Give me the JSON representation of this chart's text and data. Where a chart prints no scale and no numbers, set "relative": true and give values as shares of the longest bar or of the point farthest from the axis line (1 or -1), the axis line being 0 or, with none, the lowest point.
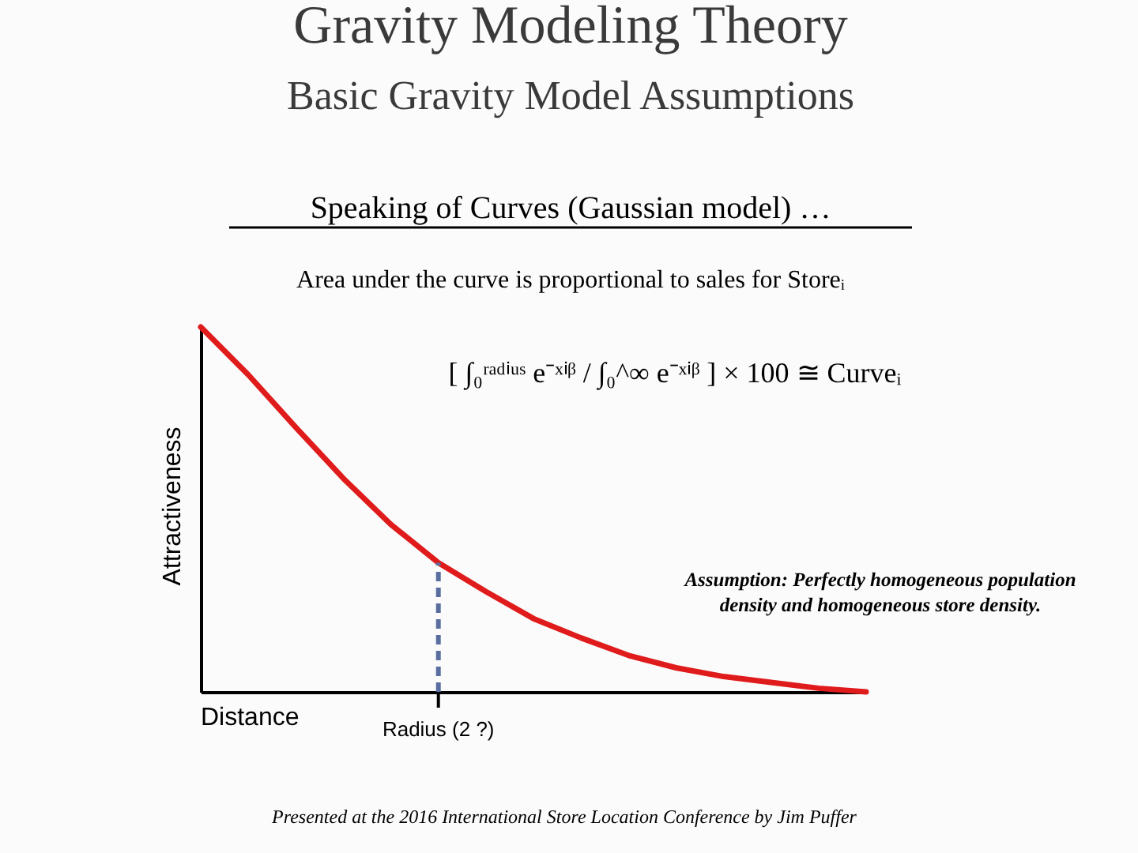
{
  "chart_data": {
    "type": "line",
    "title": "Gravity Modeling Theory",
    "subtitle": "Basic Gravity Model Assumptions",
    "xlabel": "Distance",
    "ylabel": "Attractiveness",
    "relative": true,
    "categories": [
      null,
      null,
      null,
      null,
      null,
      null,
      null,
      null,
      null,
      null,
      null,
      null,
      null,
      null,
      null
    ],
    "tick_labels": false,
    "series": [
      {
        "color": "#e01b1b",
        "values": [
          1,
          0.869,
          0.725,
          0.585,
          0.459,
          0.354,
          0.275,
          0.201,
          0.148,
          0.1,
          0.066,
          0.042,
          0.026,
          0.01,
          0
        ]
      }
    ],
    "annotations": [
      {
        "text": "Radius (2 ?)",
        "y": 0.354
      },
      "Speaking of Curves (Gaussian model) …",
      "Area under the curve is proportional to sales for Storeᵢ",
      "[ ∫₀ʳᵃᵈⁱᵘˢ e⁻ˣⁱᵝ / ∫₀^∞ e⁻ˣⁱᵝ ] × 100 ≅ Curveᵢ",
      "Assumption:  Perfectly homogeneous population density and homogeneous store density.",
      "Presented at the 2016 International Store Location Conference by Jim Puffer"
    ],
    "grid": false,
    "marker": "none",
    "line_style": "solid"
  }
}
